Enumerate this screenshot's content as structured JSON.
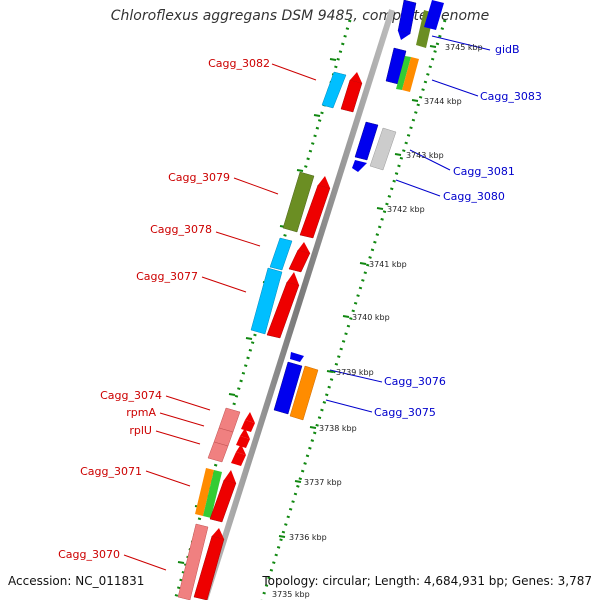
{
  "title": "Chloroflexus aggregans DSM 9485, complete genome",
  "footer": {
    "accession": "Accession: NC_011831",
    "topology": "Topology: circular; Length: 4,684,931 bp; Genes: 3,787"
  },
  "colors": {
    "label_forward": "#cc0000",
    "label_reverse": "#0000cc",
    "backbone": "#888888",
    "ticks": "#118811"
  },
  "scale_ticks": [
    "3745 kbp",
    "3744 kbp",
    "3743 kbp",
    "3742 kbp",
    "3741 kbp",
    "3740 kbp",
    "3739 kbp",
    "3738 kbp",
    "3737 kbp",
    "3736 kbp",
    "3735 kbp"
  ],
  "labels": {
    "left": [
      "Cagg_3082",
      "Cagg_3079",
      "Cagg_3078",
      "Cagg_3077",
      "Cagg_3074",
      "rpmA",
      "rplU",
      "Cagg_3071",
      "Cagg_3070"
    ],
    "right": [
      "gidB",
      "Cagg_3083",
      "Cagg_3081",
      "Cagg_3080",
      "Cagg_3076",
      "Cagg_3075"
    ]
  }
}
